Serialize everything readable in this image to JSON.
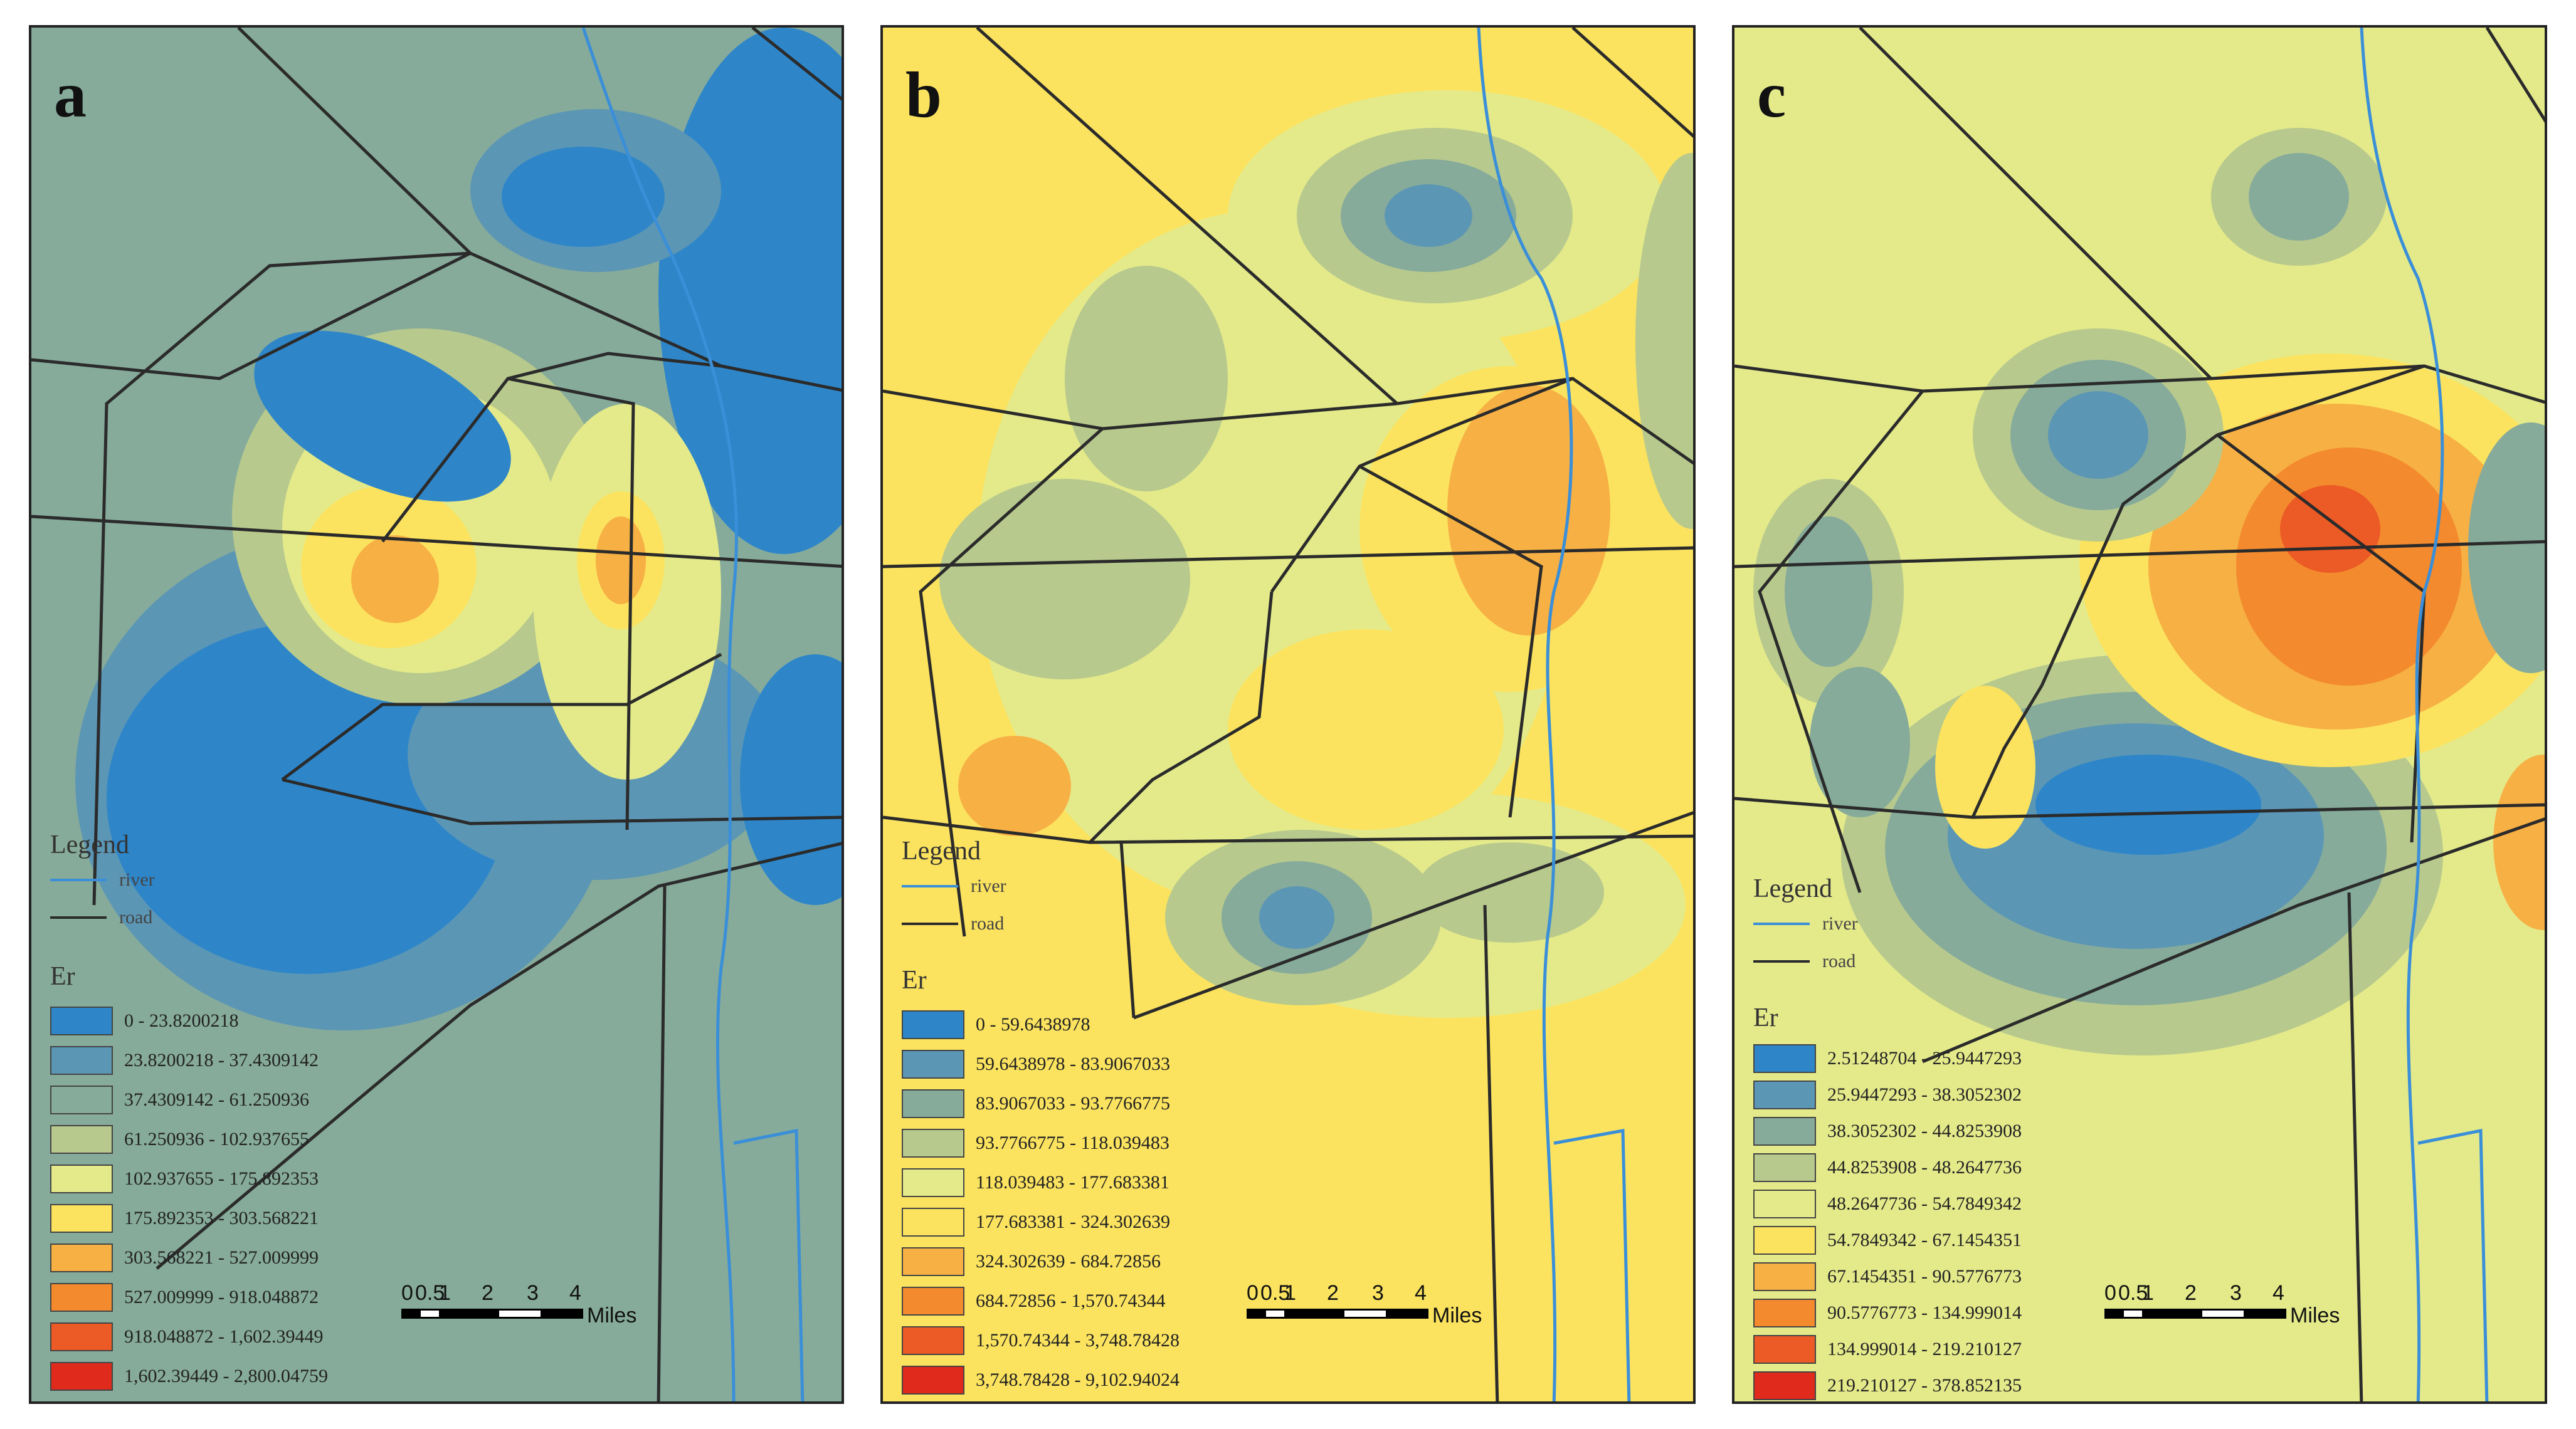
{
  "legend": {
    "title": "Legend",
    "river_label": "river",
    "road_label": "road",
    "field_title": "Er"
  },
  "scale": {
    "ticks": [
      "0",
      "0.5",
      "1",
      "2",
      "3",
      "4"
    ],
    "units": "Miles"
  },
  "colors": {
    "river": "#3a8fd8",
    "road": "#2b2b2b",
    "palette": [
      "#2e86c9",
      "#5b96b5",
      "#86ab9a",
      "#b7c98d",
      "#e4ea8a",
      "#fbe35f",
      "#f7b044",
      "#f38a2e",
      "#ec5a25",
      "#e02a1c"
    ]
  },
  "panels": [
    {
      "id": "a",
      "letter": "a",
      "background": "#86ab9a",
      "classes": [
        "0 - 23.8200218",
        "23.8200218 - 37.4309142",
        "37.4309142 - 61.250936",
        "61.250936 - 102.937655",
        "102.937655 - 175.892353",
        "175.892353 - 303.568221",
        "303.568221 - 527.009999",
        "527.009999 - 918.048872",
        "918.048872 - 1,602.39449",
        "1,602.39449 - 2,800.04759"
      ]
    },
    {
      "id": "b",
      "letter": "b",
      "background": "#fbe35f",
      "classes": [
        "0 - 59.6438978",
        "59.6438978 - 83.9067033",
        "83.9067033 - 93.7766775",
        "93.7766775 - 118.039483",
        "118.039483 - 177.683381",
        "177.683381 - 324.302639",
        "324.302639 - 684.72856",
        "684.72856 - 1,570.74344",
        "1,570.74344 - 3,748.78428",
        "3,748.78428 - 9,102.94024"
      ]
    },
    {
      "id": "c",
      "letter": "c",
      "background": "#e4ea8a",
      "classes": [
        "2.51248704 - 25.9447293",
        "25.9447293 - 38.3052302",
        "38.3052302 - 44.8253908",
        "44.8253908 - 48.2647736",
        "48.2647736 - 54.7849342",
        "54.7849342 - 67.1454351",
        "67.1454351 - 90.5776773",
        "90.5776773 - 134.999014",
        "134.999014 - 219.210127",
        "219.210127 - 378.852135"
      ]
    }
  ]
}
